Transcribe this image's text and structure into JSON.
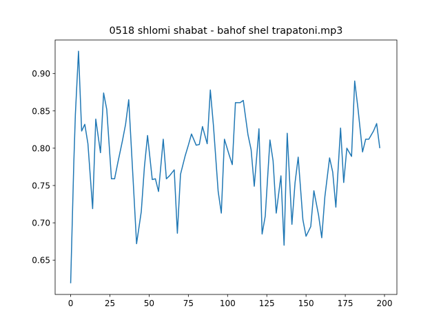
{
  "chart_data": {
    "type": "line",
    "title": "0518 shlomi shabat - bahof shel trapatoni.mp3",
    "x": [
      0,
      2,
      3,
      5,
      7,
      9,
      11,
      14,
      16,
      19,
      21,
      23,
      26,
      28,
      30,
      33,
      35,
      37,
      40,
      42,
      45,
      47,
      49,
      52,
      54,
      56,
      59,
      61,
      63,
      66,
      68,
      70,
      73,
      75,
      77,
      80,
      82,
      84,
      87,
      89,
      91,
      94,
      96,
      98,
      101,
      103,
      105,
      108,
      110,
      113,
      115,
      117,
      120,
      122,
      124,
      127,
      129,
      131,
      134,
      136,
      138,
      141,
      143,
      145,
      148,
      150,
      153,
      155,
      158,
      160,
      162,
      165,
      167,
      169,
      172,
      174,
      176,
      179,
      181,
      183,
      186,
      188,
      190,
      193,
      195,
      197
    ],
    "series": [
      {
        "name": "line",
        "color": "#1f77b4",
        "values": [
          0.619,
          0.78,
          0.845,
          0.93,
          0.823,
          0.832,
          0.806,
          0.719,
          0.839,
          0.794,
          0.874,
          0.852,
          0.759,
          0.759,
          0.78,
          0.81,
          0.832,
          0.865,
          0.75,
          0.672,
          0.715,
          0.775,
          0.817,
          0.758,
          0.759,
          0.742,
          0.812,
          0.759,
          0.763,
          0.771,
          0.686,
          0.765,
          0.79,
          0.804,
          0.819,
          0.804,
          0.805,
          0.829,
          0.806,
          0.878,
          0.83,
          0.742,
          0.713,
          0.812,
          0.791,
          0.778,
          0.861,
          0.861,
          0.864,
          0.818,
          0.798,
          0.749,
          0.826,
          0.685,
          0.709,
          0.811,
          0.783,
          0.713,
          0.763,
          0.67,
          0.82,
          0.698,
          0.754,
          0.788,
          0.704,
          0.682,
          0.695,
          0.743,
          0.71,
          0.68,
          0.735,
          0.787,
          0.768,
          0.721,
          0.827,
          0.754,
          0.8,
          0.789,
          0.89,
          0.855,
          0.795,
          0.812,
          0.812,
          0.823,
          0.833,
          0.8
        ]
      }
    ],
    "xlim": [
      -9.9,
      207.9
    ],
    "ylim": [
      0.604,
      0.945
    ],
    "xticks": [
      0,
      25,
      50,
      75,
      100,
      125,
      150,
      175,
      200
    ],
    "yticks": [
      0.65,
      {
        "value": 0.7,
        "label": "0.70"
      },
      0.75,
      {
        "value": 0.8,
        "label": "0.80"
      },
      0.85,
      {
        "value": 0.9,
        "label": "0.90"
      }
    ]
  }
}
